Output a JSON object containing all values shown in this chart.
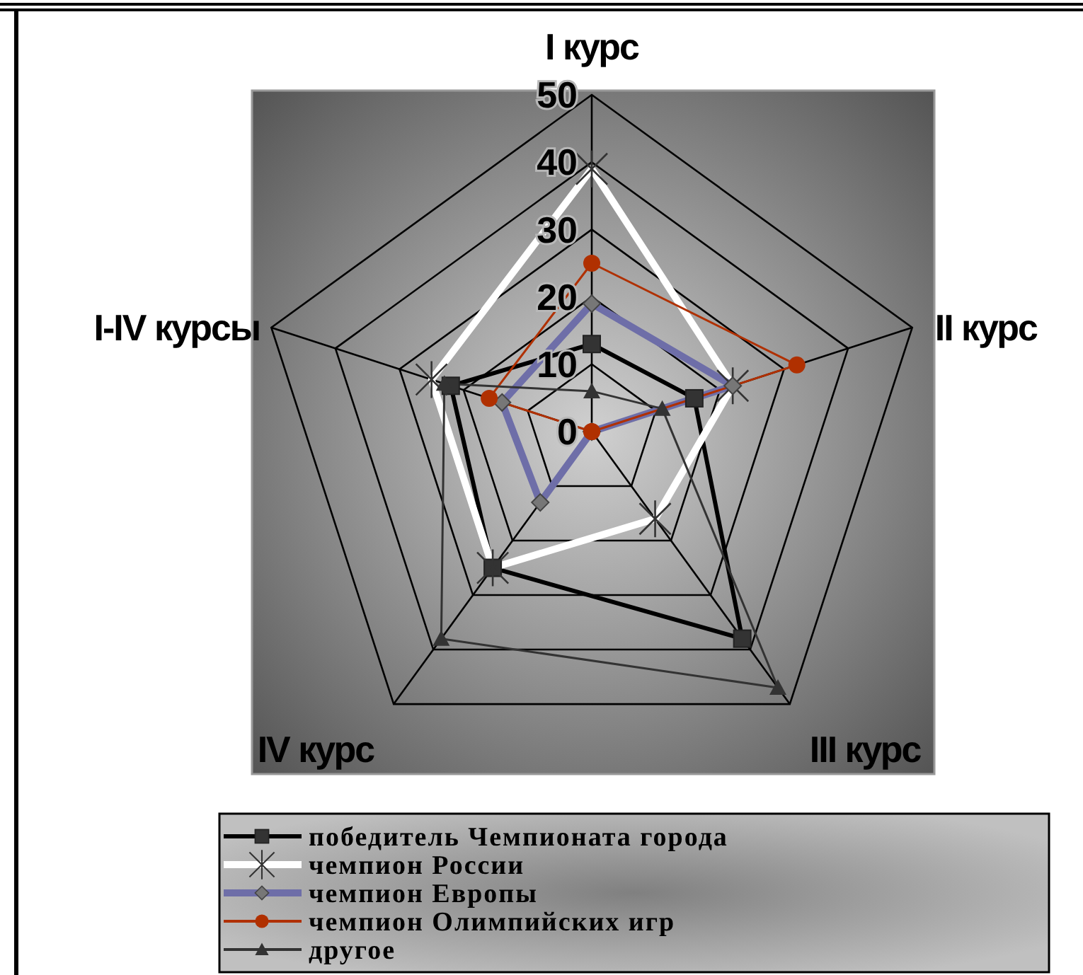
{
  "chart_data": {
    "type": "radar",
    "categories": [
      "I курс",
      "II курс",
      "III курс",
      "IV курс",
      "I-IV курсы"
    ],
    "ylim": [
      0,
      50
    ],
    "yticks": [
      0,
      10,
      20,
      30,
      40,
      50
    ],
    "grid": true,
    "legend": "bottom",
    "series": [
      {
        "name": "победитель Чемпионата города",
        "color": "#000000",
        "marker": "square",
        "values": [
          13,
          16,
          38,
          25,
          22
        ]
      },
      {
        "name": "чемпион России",
        "color": "#ffffff",
        "marker": "cross",
        "values": [
          39,
          22,
          16,
          25,
          25
        ]
      },
      {
        "name": "чемпион Европы",
        "color": "#6e6ea8",
        "marker": "diamond",
        "values": [
          19,
          22,
          0,
          13,
          14
        ]
      },
      {
        "name": "чемпион Олимпийских игр",
        "color": "#b03000",
        "marker": "circle",
        "values": [
          25,
          32,
          0,
          0,
          16
        ]
      },
      {
        "name": "другое",
        "color": "#333333",
        "marker": "triangle",
        "values": [
          6,
          11,
          47,
          38,
          23
        ]
      }
    ]
  }
}
